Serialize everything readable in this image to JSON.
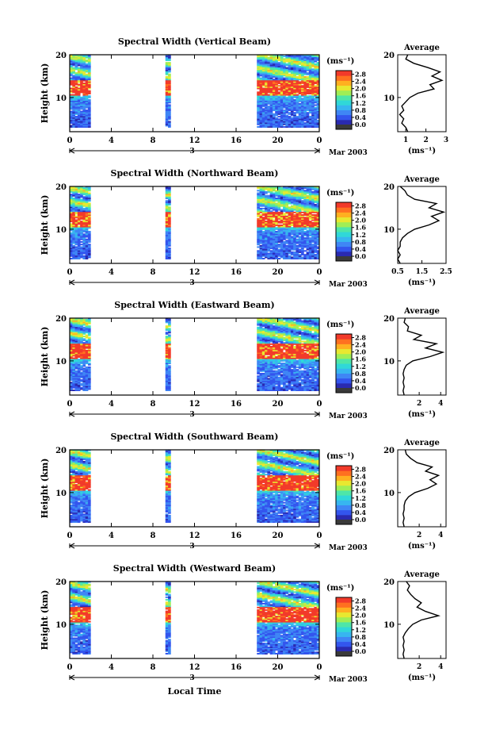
{
  "figure": {
    "xlabel": "Local Time",
    "date_label": "Mar 2003",
    "day_label": "3",
    "cbar_unit": "(ms⁻¹)",
    "avg_title": "Average",
    "avg_xlabel": "(ms⁻¹)"
  },
  "colors": {
    "scale": [
      "#2a2ab0",
      "#3355ee",
      "#3f86f5",
      "#37b6f0",
      "#30d8d8",
      "#4ee6a8",
      "#a0ee55",
      "#e8e830",
      "#ffb020",
      "#ff7020",
      "#f23a2a"
    ],
    "bottom": "#3a3a3a"
  },
  "chart_data": [
    {
      "type": "heatmap",
      "title": "Spectral Width (Vertical Beam)",
      "ylabel": "Height (km)",
      "xlim": [
        0,
        24
      ],
      "ylim": [
        2,
        20
      ],
      "xticks": [
        "0",
        "4",
        "8",
        "12",
        "16",
        "20",
        "0"
      ],
      "yticks": [
        "20",
        "10"
      ],
      "colorbar": {
        "ticks": [
          "2.8",
          "2.4",
          "2.0",
          "1.6",
          "1.2",
          "0.8",
          "0.4",
          "0.0"
        ],
        "range": [
          0,
          3.0
        ]
      },
      "data_gaps": [
        [
          2.0,
          9.2
        ],
        [
          9.6,
          18.0
        ]
      ],
      "average": {
        "xticks": [
          "1",
          "2",
          "3"
        ],
        "xlim": [
          0.6,
          3.0
        ],
        "profile": [
          [
            2,
            1.1
          ],
          [
            3,
            1.0
          ],
          [
            4,
            0.8
          ],
          [
            5,
            0.9
          ],
          [
            6,
            0.7
          ],
          [
            7,
            0.9
          ],
          [
            8,
            0.8
          ],
          [
            9,
            1.0
          ],
          [
            10,
            1.2
          ],
          [
            11,
            1.6
          ],
          [
            12,
            2.4
          ],
          [
            13,
            2.2
          ],
          [
            14,
            2.8
          ],
          [
            15,
            2.3
          ],
          [
            16,
            2.7
          ],
          [
            17,
            2.1
          ],
          [
            18,
            1.4
          ],
          [
            19,
            1.0
          ],
          [
            20,
            1.1
          ]
        ]
      }
    },
    {
      "type": "heatmap",
      "title": "Spectral Width (Northward Beam)",
      "ylabel": "Height (km)",
      "xlim": [
        0,
        24
      ],
      "ylim": [
        2,
        20
      ],
      "xticks": [
        "0",
        "4",
        "8",
        "12",
        "16",
        "20",
        "0"
      ],
      "yticks": [
        "20",
        "10"
      ],
      "colorbar": {
        "ticks": [
          "2.8",
          "2.4",
          "2.0",
          "1.6",
          "1.2",
          "0.8",
          "0.4",
          "0.0"
        ],
        "range": [
          0,
          3.0
        ]
      },
      "data_gaps": [
        [
          2.0,
          9.2
        ],
        [
          9.6,
          18.0
        ]
      ],
      "average": {
        "xticks": [
          "0.5",
          "1.5",
          "2.5"
        ],
        "xlim": [
          0.5,
          2.5
        ],
        "profile": [
          [
            2,
            0.6
          ],
          [
            3,
            0.5
          ],
          [
            4,
            0.6
          ],
          [
            5,
            0.5
          ],
          [
            6,
            0.6
          ],
          [
            7,
            0.6
          ],
          [
            8,
            0.7
          ],
          [
            9,
            0.9
          ],
          [
            10,
            1.2
          ],
          [
            11,
            1.8
          ],
          [
            12,
            2.2
          ],
          [
            13,
            1.9
          ],
          [
            14,
            2.4
          ],
          [
            15,
            1.8
          ],
          [
            16,
            2.1
          ],
          [
            17,
            1.2
          ],
          [
            18,
            0.9
          ],
          [
            19,
            0.8
          ],
          [
            20,
            0.6
          ]
        ]
      }
    },
    {
      "type": "heatmap",
      "title": "Spectral Width (Eastward Beam)",
      "ylabel": "Height (km)",
      "xlim": [
        0,
        24
      ],
      "ylim": [
        2,
        20
      ],
      "xticks": [
        "0",
        "4",
        "8",
        "12",
        "16",
        "20",
        "0"
      ],
      "yticks": [
        "20",
        "10"
      ],
      "colorbar": {
        "ticks": [
          "2.8",
          "2.4",
          "2.0",
          "1.6",
          "1.2",
          "0.8",
          "0.4",
          "0.0"
        ],
        "range": [
          0,
          3.0
        ]
      },
      "data_gaps": [
        [
          2.0,
          9.2
        ],
        [
          9.6,
          18.0
        ]
      ],
      "average": {
        "xticks": [
          "2",
          "4"
        ],
        "xlim": [
          0,
          4.5
        ],
        "profile": [
          [
            2,
            0.6
          ],
          [
            3,
            0.5
          ],
          [
            4,
            0.6
          ],
          [
            5,
            0.5
          ],
          [
            6,
            0.6
          ],
          [
            7,
            0.5
          ],
          [
            8,
            0.6
          ],
          [
            9,
            0.8
          ],
          [
            10,
            1.4
          ],
          [
            11,
            3.0
          ],
          [
            12,
            4.2
          ],
          [
            13,
            2.6
          ],
          [
            14,
            3.6
          ],
          [
            15,
            1.5
          ],
          [
            16,
            2.2
          ],
          [
            17,
            0.9
          ],
          [
            18,
            1.0
          ],
          [
            19,
            0.6
          ],
          [
            20,
            0.7
          ]
        ]
      }
    },
    {
      "type": "heatmap",
      "title": "Spectral Width (Southward Beam)",
      "ylabel": "Height (km)",
      "xlim": [
        0,
        24
      ],
      "ylim": [
        2,
        20
      ],
      "xticks": [
        "0",
        "4",
        "8",
        "12",
        "16",
        "20",
        "0"
      ],
      "yticks": [
        "20",
        "10"
      ],
      "colorbar": {
        "ticks": [
          "2.8",
          "2.4",
          "2.0",
          "1.6",
          "1.2",
          "0.8",
          "0.4",
          "0.0"
        ],
        "range": [
          0,
          3.0
        ]
      },
      "data_gaps": [
        [
          2.0,
          9.2
        ],
        [
          9.6,
          18.0
        ]
      ],
      "average": {
        "xticks": [
          "2",
          "4"
        ],
        "xlim": [
          0,
          4.5
        ],
        "profile": [
          [
            2,
            0.6
          ],
          [
            3,
            0.5
          ],
          [
            4,
            0.6
          ],
          [
            5,
            0.5
          ],
          [
            6,
            0.6
          ],
          [
            7,
            0.6
          ],
          [
            8,
            0.7
          ],
          [
            9,
            1.0
          ],
          [
            10,
            1.6
          ],
          [
            11,
            2.8
          ],
          [
            12,
            3.6
          ],
          [
            13,
            3.0
          ],
          [
            14,
            3.8
          ],
          [
            15,
            2.6
          ],
          [
            16,
            3.2
          ],
          [
            17,
            1.8
          ],
          [
            18,
            1.2
          ],
          [
            19,
            0.8
          ],
          [
            20,
            0.7
          ]
        ]
      }
    },
    {
      "type": "heatmap",
      "title": "Spectral Width (Westward Beam)",
      "ylabel": "Height (km)",
      "xlim": [
        0,
        24
      ],
      "ylim": [
        2,
        20
      ],
      "xticks": [
        "0",
        "4",
        "8",
        "12",
        "16",
        "20",
        "0"
      ],
      "yticks": [
        "20",
        "10"
      ],
      "colorbar": {
        "ticks": [
          "2.8",
          "2.4",
          "2.0",
          "1.6",
          "1.2",
          "0.8",
          "0.4",
          "0.0"
        ],
        "range": [
          0,
          3.0
        ]
      },
      "data_gaps": [
        [
          2.0,
          9.2
        ],
        [
          9.6,
          18.0
        ]
      ],
      "average": {
        "xticks": [
          "2",
          "4"
        ],
        "xlim": [
          0,
          4.5
        ],
        "profile": [
          [
            2,
            0.6
          ],
          [
            3,
            0.5
          ],
          [
            4,
            0.6
          ],
          [
            5,
            0.5
          ],
          [
            6,
            0.6
          ],
          [
            7,
            0.5
          ],
          [
            8,
            0.7
          ],
          [
            9,
            1.0
          ],
          [
            10,
            1.4
          ],
          [
            11,
            2.2
          ],
          [
            12,
            3.8
          ],
          [
            13,
            2.6
          ],
          [
            14,
            1.8
          ],
          [
            15,
            2.2
          ],
          [
            16,
            1.6
          ],
          [
            17,
            1.2
          ],
          [
            18,
            0.9
          ],
          [
            19,
            1.1
          ],
          [
            20,
            0.8
          ]
        ]
      }
    }
  ]
}
